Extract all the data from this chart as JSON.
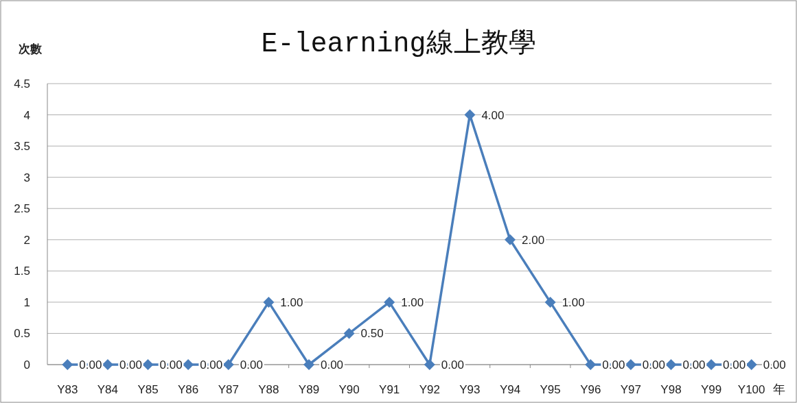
{
  "chart_data": {
    "type": "line",
    "title": "E-learning線上教學",
    "ylabel": "次數",
    "xlabel": "年",
    "categories": [
      "Y83",
      "Y84",
      "Y85",
      "Y86",
      "Y87",
      "Y88",
      "Y89",
      "Y90",
      "Y91",
      "Y92",
      "Y93",
      "Y94",
      "Y95",
      "Y96",
      "Y97",
      "Y98",
      "Y99",
      "Y100"
    ],
    "series": [
      {
        "color": "#4a7ebb",
        "values": [
          0,
          0,
          0,
          0,
          0,
          1,
          0,
          0.5,
          1,
          0,
          4,
          2,
          1,
          0,
          0,
          0,
          0,
          0
        ],
        "value_labels": [
          "0.00",
          "0.00",
          "0.00",
          "0.00",
          "0.00",
          "1.00",
          "0.00",
          "0.50",
          "1.00",
          "0.00",
          "4.00",
          "2.00",
          "1.00",
          "0.00",
          "0.00",
          "0.00",
          "0.00",
          "0.00"
        ]
      }
    ],
    "ylim": [
      0,
      4.5
    ],
    "yticks": [
      0,
      0.5,
      1,
      1.5,
      2,
      2.5,
      3,
      3.5,
      4,
      4.5
    ],
    "grid": "y",
    "marker": "diamond"
  }
}
